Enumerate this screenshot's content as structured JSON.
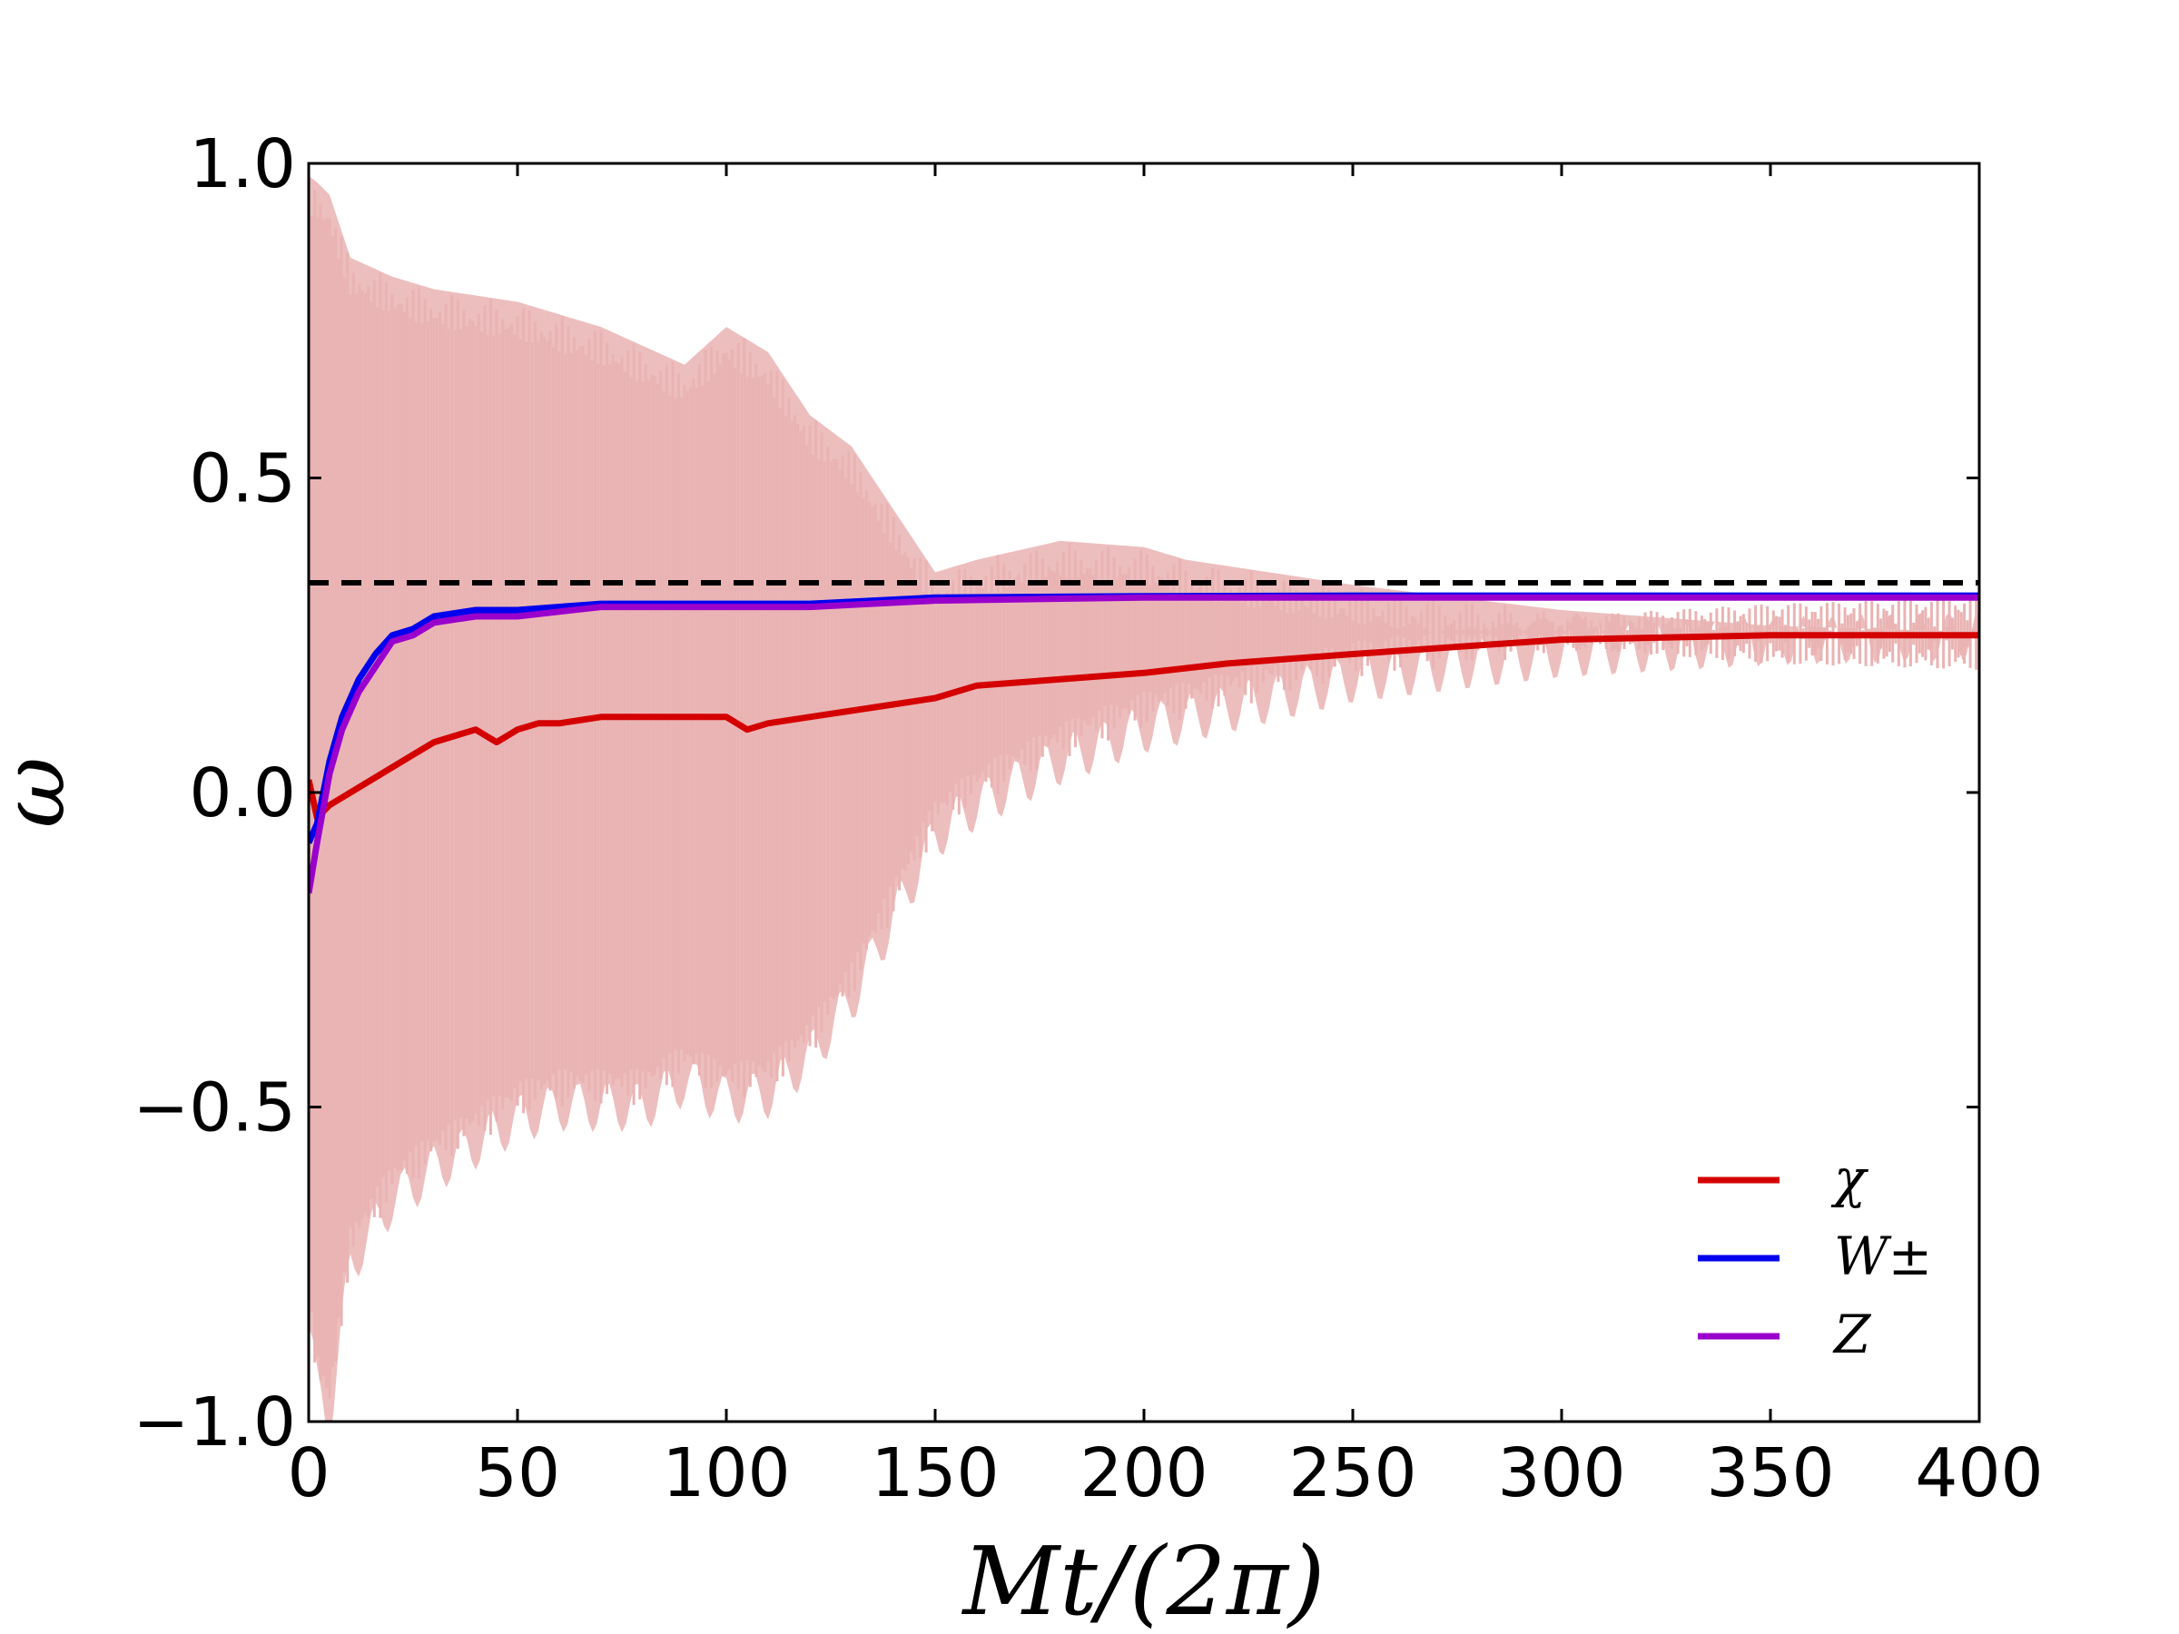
{
  "chart_data": {
    "type": "line",
    "title": "",
    "xlabel": "Mt/(2π)",
    "ylabel": "ω",
    "xlim": [
      0,
      400
    ],
    "ylim": [
      -1.0,
      1.0
    ],
    "x_ticks": [
      0,
      50,
      100,
      150,
      200,
      250,
      300,
      350,
      400
    ],
    "x_tick_labels": [
      "0",
      "50",
      "100",
      "150",
      "200",
      "250",
      "300",
      "350",
      "400"
    ],
    "y_ticks": [
      1.0,
      0.5,
      0.0,
      -0.5,
      -1.0
    ],
    "y_tick_labels": [
      "1.0",
      "0.5",
      "0.0",
      "−0.5",
      "−1.0"
    ],
    "grid": false,
    "legend_position": "bottom-right",
    "reference_line": {
      "y": 0.3333,
      "style": "dashed",
      "color": "#000000"
    },
    "oscillation_band": {
      "color": "#eab3b3",
      "upper": {
        "x": [
          0,
          2,
          5,
          10,
          20,
          30,
          40,
          50,
          60,
          70,
          80,
          90,
          100,
          110,
          120,
          130,
          140,
          145,
          150,
          160,
          180,
          200,
          210,
          250,
          300,
          350,
          400
        ],
        "y": [
          0.98,
          0.97,
          0.95,
          0.85,
          0.82,
          0.8,
          0.79,
          0.78,
          0.76,
          0.74,
          0.71,
          0.68,
          0.74,
          0.7,
          0.6,
          0.55,
          0.45,
          0.4,
          0.35,
          0.37,
          0.4,
          0.39,
          0.37,
          0.33,
          0.29,
          0.265,
          0.255
        ]
      },
      "lower": {
        "x": [
          0,
          2,
          5,
          10,
          20,
          30,
          40,
          50,
          60,
          70,
          80,
          90,
          100,
          110,
          120,
          130,
          140,
          150,
          160,
          180,
          200,
          250,
          300,
          350,
          400
        ],
        "y": [
          -0.85,
          -0.95,
          -1.0,
          -0.75,
          -0.65,
          -0.6,
          -0.56,
          -0.52,
          -0.5,
          -0.5,
          -0.5,
          -0.46,
          -0.49,
          -0.48,
          -0.42,
          -0.33,
          -0.2,
          -0.07,
          -0.02,
          0.05,
          0.1,
          0.18,
          0.22,
          0.24,
          0.25
        ]
      }
    },
    "series": [
      {
        "name": "χ",
        "color": "#d40000",
        "x": [
          0,
          2,
          5,
          10,
          15,
          20,
          25,
          30,
          35,
          40,
          45,
          50,
          55,
          60,
          70,
          80,
          90,
          100,
          105,
          110,
          120,
          140,
          150,
          160,
          180,
          200,
          220,
          250,
          300,
          350,
          400
        ],
        "y": [
          0.02,
          -0.04,
          -0.02,
          0.0,
          0.02,
          0.04,
          0.06,
          0.08,
          0.09,
          0.1,
          0.08,
          0.1,
          0.11,
          0.11,
          0.12,
          0.12,
          0.12,
          0.12,
          0.1,
          0.11,
          0.12,
          0.14,
          0.15,
          0.17,
          0.18,
          0.19,
          0.205,
          0.22,
          0.243,
          0.25,
          0.25
        ]
      },
      {
        "name": "W±",
        "color": "#0000ee",
        "x": [
          0,
          2,
          5,
          8,
          12,
          16,
          20,
          25,
          30,
          40,
          50,
          70,
          100,
          120,
          150,
          200,
          250,
          300,
          350,
          400
        ],
        "y": [
          -0.08,
          -0.05,
          0.05,
          0.12,
          0.18,
          0.22,
          0.25,
          0.26,
          0.28,
          0.29,
          0.29,
          0.3,
          0.3,
          0.3,
          0.31,
          0.312,
          0.313,
          0.313,
          0.313,
          0.313
        ]
      },
      {
        "name": "Z",
        "color": "#9900cc",
        "x": [
          0,
          2,
          5,
          8,
          12,
          16,
          20,
          25,
          30,
          40,
          50,
          70,
          100,
          120,
          150,
          200,
          250,
          300,
          350,
          400
        ],
        "y": [
          -0.16,
          -0.08,
          0.03,
          0.1,
          0.16,
          0.2,
          0.24,
          0.25,
          0.27,
          0.28,
          0.28,
          0.295,
          0.295,
          0.295,
          0.305,
          0.31,
          0.31,
          0.31,
          0.31,
          0.31
        ]
      }
    ]
  }
}
